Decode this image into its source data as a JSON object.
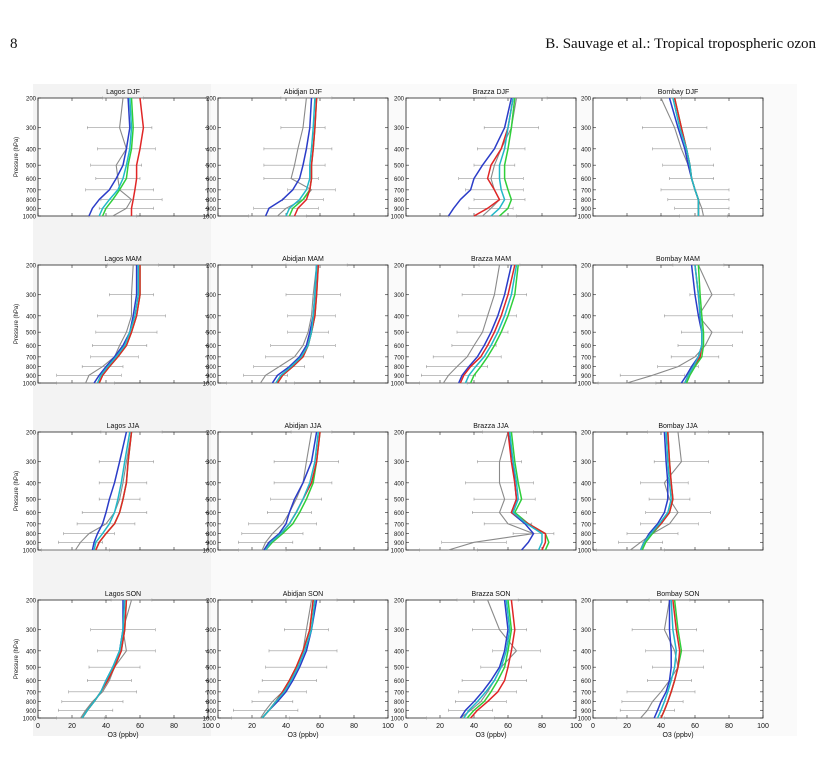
{
  "page_number": "8",
  "running_header": "B. Sauvage et al.: Tropical tropospheric ozon",
  "colors": {
    "blue": "#2b3cc8",
    "green": "#2fcf3a",
    "red": "#e02626",
    "cyan": "#20b8c8",
    "gray": "#8a8a8a"
  },
  "chart_data": {
    "type": "line",
    "layout": "4x4 grid of vertical ozone profiles",
    "ylabel": "Pressure (hPa)",
    "xlabel": "O3 (ppbv)",
    "y_ticks": [
      "200",
      "300",
      "400",
      "500",
      "600",
      "700",
      "800",
      "900",
      "1000"
    ],
    "x_ticks": [
      "0",
      "20",
      "40",
      "60",
      "80",
      "100"
    ],
    "xlim": [
      0,
      100
    ],
    "ylim": [
      1000,
      200
    ],
    "yscale": "log",
    "pressure_levels": [
      200,
      300,
      400,
      500,
      600,
      700,
      800,
      900,
      1000
    ],
    "series_colors": [
      "blue",
      "green",
      "red",
      "cyan"
    ],
    "panels": [
      {
        "title": "Lagos DJF",
        "obs": [
          50,
          48,
          52,
          46,
          47,
          48,
          55,
          52,
          44
        ],
        "blue": [
          53,
          54,
          52,
          50,
          46,
          42,
          36,
          32,
          30
        ],
        "green": [
          55,
          56,
          55,
          53,
          52,
          48,
          44,
          40,
          38
        ],
        "red": [
          60,
          62,
          60,
          58,
          58,
          57,
          56,
          55,
          55
        ],
        "cyan": [
          54,
          55,
          54,
          52,
          50,
          47,
          42,
          38,
          36
        ]
      },
      {
        "title": "Abidjan DJF",
        "obs": [
          52,
          50,
          47,
          45,
          43,
          55,
          50,
          40,
          35
        ],
        "blue": [
          55,
          54,
          52,
          50,
          48,
          44,
          38,
          30,
          28
        ],
        "green": [
          58,
          57,
          56,
          55,
          55,
          54,
          50,
          44,
          42
        ],
        "red": [
          58,
          57,
          56,
          55,
          55,
          54,
          52,
          47,
          45
        ],
        "cyan": [
          57,
          56,
          55,
          54,
          54,
          52,
          48,
          42,
          40
        ]
      },
      {
        "title": "Brazza DJF",
        "obs": [
          65,
          62,
          56,
          52,
          50,
          52,
          55,
          50,
          45
        ],
        "blue": [
          62,
          58,
          52,
          45,
          40,
          38,
          32,
          28,
          25
        ],
        "green": [
          64,
          62,
          60,
          58,
          58,
          60,
          62,
          60,
          55
        ],
        "red": [
          63,
          60,
          56,
          50,
          48,
          52,
          55,
          48,
          40
        ],
        "cyan": [
          63,
          60,
          58,
          55,
          55,
          56,
          58,
          55,
          50
        ]
      },
      {
        "title": "Bombay DJF",
        "obs": [
          40,
          48,
          52,
          56,
          58,
          60,
          62,
          64,
          65
        ],
        "blue": [
          45,
          50,
          54,
          56,
          58,
          60,
          62,
          62,
          62
        ],
        "green": [
          48,
          52,
          55,
          57,
          58,
          60,
          62,
          62,
          62
        ],
        "red": [
          48,
          52,
          55,
          57,
          58,
          60,
          62,
          62,
          62
        ],
        "cyan": [
          47,
          51,
          55,
          57,
          58,
          60,
          62,
          62,
          62
        ]
      },
      {
        "title": "Lagos MAM",
        "obs": [
          56,
          55,
          55,
          52,
          48,
          45,
          38,
          30,
          28
        ],
        "blue": [
          58,
          58,
          56,
          54,
          50,
          45,
          40,
          36,
          33
        ],
        "green": [
          60,
          60,
          58,
          55,
          52,
          47,
          42,
          38,
          36
        ],
        "red": [
          60,
          60,
          58,
          55,
          52,
          47,
          42,
          38,
          36
        ],
        "cyan": [
          59,
          59,
          57,
          54,
          51,
          46,
          41,
          37,
          35
        ]
      },
      {
        "title": "Abidjan MAM",
        "obs": [
          58,
          56,
          55,
          53,
          50,
          45,
          36,
          28,
          25
        ],
        "blue": [
          58,
          57,
          56,
          54,
          52,
          48,
          42,
          35,
          32
        ],
        "green": [
          59,
          58,
          57,
          55,
          53,
          50,
          44,
          38,
          35
        ],
        "red": [
          59,
          58,
          57,
          55,
          53,
          50,
          44,
          38,
          35
        ],
        "cyan": [
          58,
          57,
          56,
          55,
          53,
          49,
          43,
          37,
          34
        ]
      },
      {
        "title": "Brazza MAM",
        "obs": [
          55,
          52,
          48,
          45,
          40,
          36,
          30,
          25,
          22
        ],
        "blue": [
          62,
          58,
          54,
          50,
          46,
          42,
          37,
          33,
          31
        ],
        "green": [
          66,
          64,
          60,
          56,
          52,
          48,
          44,
          40,
          38
        ],
        "red": [
          64,
          60,
          56,
          52,
          48,
          44,
          38,
          34,
          32
        ],
        "cyan": [
          65,
          62,
          58,
          54,
          50,
          46,
          41,
          37,
          35
        ]
      },
      {
        "title": "Bombay MAM",
        "obs": [
          62,
          70,
          62,
          70,
          66,
          60,
          50,
          35,
          20
        ],
        "blue": [
          58,
          60,
          62,
          64,
          64,
          62,
          58,
          55,
          52
        ],
        "green": [
          62,
          63,
          64,
          65,
          65,
          64,
          60,
          57,
          55
        ],
        "red": [
          60,
          62,
          63,
          64,
          64,
          63,
          59,
          56,
          54
        ],
        "cyan": [
          60,
          62,
          63,
          64,
          64,
          62,
          59,
          56,
          54
        ]
      },
      {
        "title": "Lagos JJA",
        "obs": [
          55,
          52,
          50,
          48,
          45,
          40,
          30,
          25,
          22
        ],
        "blue": [
          52,
          48,
          45,
          42,
          40,
          38,
          35,
          33,
          32
        ],
        "green": [
          55,
          53,
          52,
          50,
          48,
          45,
          40,
          36,
          34
        ],
        "red": [
          55,
          53,
          52,
          50,
          48,
          45,
          40,
          36,
          34
        ],
        "cyan": [
          54,
          51,
          49,
          47,
          45,
          42,
          38,
          34,
          33
        ]
      },
      {
        "title": "Abidjan JJA",
        "obs": [
          55,
          52,
          50,
          46,
          42,
          38,
          32,
          28,
          26
        ],
        "blue": [
          58,
          55,
          50,
          45,
          42,
          40,
          36,
          30,
          27
        ],
        "green": [
          60,
          58,
          56,
          52,
          48,
          44,
          38,
          32,
          28
        ],
        "red": [
          60,
          58,
          55,
          50,
          46,
          42,
          37,
          31,
          28
        ],
        "cyan": [
          59,
          57,
          54,
          50,
          46,
          42,
          37,
          31,
          28
        ]
      },
      {
        "title": "Brazza JJA",
        "obs": [
          60,
          55,
          55,
          58,
          55,
          60,
          75,
          40,
          25
        ],
        "blue": [
          60,
          63,
          64,
          65,
          62,
          70,
          75,
          72,
          68
        ],
        "green": [
          62,
          64,
          66,
          68,
          64,
          72,
          82,
          84,
          82
        ],
        "red": [
          60,
          62,
          64,
          65,
          62,
          72,
          82,
          82,
          80
        ],
        "cyan": [
          61,
          63,
          65,
          66,
          63,
          71,
          80,
          80,
          78
        ]
      },
      {
        "title": "Bombay JJA",
        "obs": [
          50,
          52,
          42,
          45,
          50,
          45,
          35,
          28,
          22
        ],
        "blue": [
          42,
          43,
          44,
          44,
          42,
          38,
          33,
          30,
          28
        ],
        "green": [
          44,
          45,
          46,
          47,
          45,
          40,
          35,
          31,
          29
        ],
        "red": [
          44,
          45,
          46,
          47,
          45,
          40,
          34,
          30,
          28
        ],
        "cyan": [
          43,
          44,
          45,
          46,
          44,
          39,
          34,
          30,
          28
        ]
      },
      {
        "title": "Lagos SON",
        "obs": [
          55,
          50,
          52,
          45,
          42,
          38,
          32,
          28,
          25
        ],
        "blue": [
          50,
          50,
          48,
          44,
          40,
          37,
          33,
          29,
          26
        ],
        "green": [
          52,
          51,
          49,
          45,
          41,
          37,
          33,
          29,
          26
        ],
        "red": [
          52,
          51,
          49,
          45,
          41,
          37,
          33,
          29,
          26
        ],
        "cyan": [
          51,
          50,
          48,
          44,
          40,
          37,
          33,
          29,
          26
        ]
      },
      {
        "title": "Abidjan SON",
        "obs": [
          55,
          52,
          50,
          46,
          42,
          38,
          32,
          28,
          25
        ],
        "blue": [
          58,
          55,
          52,
          48,
          44,
          40,
          35,
          30,
          26
        ],
        "green": [
          56,
          54,
          50,
          46,
          42,
          38,
          34,
          30,
          26
        ],
        "red": [
          56,
          54,
          50,
          46,
          42,
          38,
          34,
          30,
          26
        ],
        "cyan": [
          57,
          55,
          51,
          47,
          43,
          39,
          34,
          30,
          26
        ]
      },
      {
        "title": "Brazza SON",
        "obs": [
          48,
          55,
          65,
          56,
          52,
          48,
          44,
          38,
          32
        ],
        "blue": [
          58,
          60,
          58,
          55,
          50,
          45,
          40,
          35,
          32
        ],
        "green": [
          60,
          62,
          60,
          58,
          54,
          50,
          46,
          40,
          36
        ],
        "red": [
          62,
          64,
          62,
          60,
          58,
          54,
          48,
          42,
          38
        ],
        "cyan": [
          59,
          61,
          59,
          56,
          52,
          47,
          42,
          37,
          34
        ]
      },
      {
        "title": "Bombay SON",
        "obs": [
          45,
          42,
          48,
          50,
          45,
          40,
          35,
          32,
          28
        ],
        "blue": [
          45,
          45,
          46,
          46,
          45,
          43,
          40,
          38,
          36
        ],
        "green": [
          48,
          50,
          52,
          50,
          48,
          46,
          44,
          42,
          40
        ],
        "red": [
          47,
          49,
          51,
          50,
          48,
          46,
          44,
          42,
          40
        ],
        "cyan": [
          46,
          47,
          49,
          48,
          46,
          44,
          42,
          40,
          38
        ]
      }
    ]
  }
}
